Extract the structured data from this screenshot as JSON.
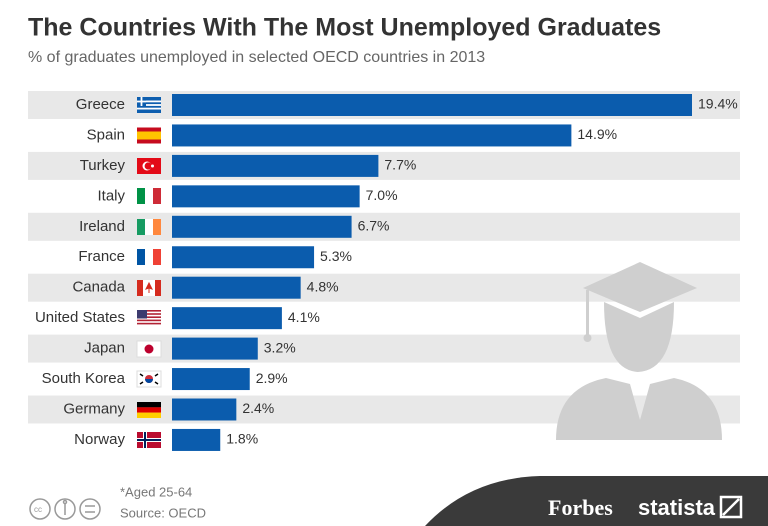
{
  "chart_data": {
    "type": "bar",
    "orientation": "horizontal",
    "title": "The Countries With The Most Unemployed Graduates",
    "subtitle": "% of graduates unemployed in selected OECD countries in 2013",
    "categories": [
      "Greece",
      "Spain",
      "Turkey",
      "Italy",
      "Ireland",
      "France",
      "Canada",
      "United States",
      "Japan",
      "South Korea",
      "Germany",
      "Norway"
    ],
    "values": [
      19.4,
      14.9,
      7.7,
      7.0,
      6.7,
      5.3,
      4.8,
      4.1,
      3.2,
      2.9,
      2.4,
      1.8
    ],
    "value_labels": [
      "19.4%",
      "14.9%",
      "7.7%",
      "7.0%",
      "6.7%",
      "5.3%",
      "4.8%",
      "4.1%",
      "3.2%",
      "2.9%",
      "2.4%",
      "1.8%"
    ],
    "color": "#0b5cad",
    "note": "*Aged 25-64",
    "source": "Source: OECD",
    "brands": [
      "Forbes",
      "statista"
    ]
  }
}
